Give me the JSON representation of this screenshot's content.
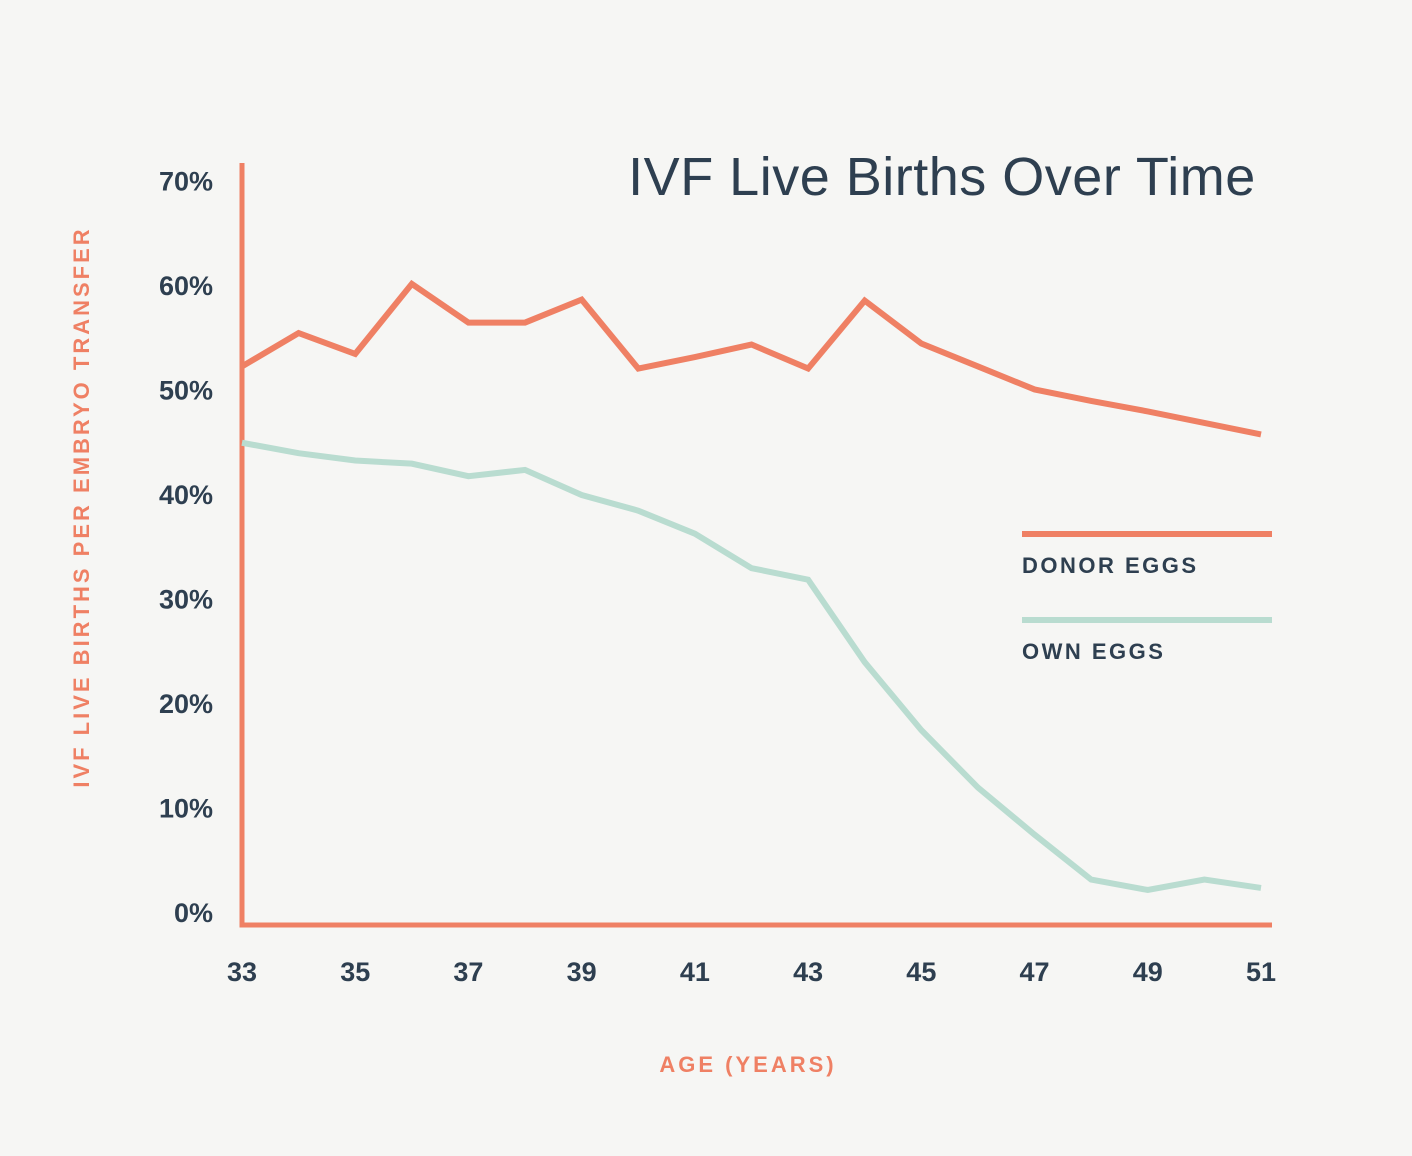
{
  "title": "IVF Live Births Over Time",
  "x_axis_label": "AGE (YEARS)",
  "y_axis_label": "IVF LIVE BIRTHS PER EMBRYO TRANSFER",
  "colors": {
    "background": "#f6f6f4",
    "axis_coral": "#ef8064",
    "donor_eggs_line": "#ef8064",
    "own_eggs_line": "#b9dcd0",
    "text_dark": "#2e3f50",
    "label_coral": "#ef8064"
  },
  "legend": [
    {
      "label": "DONOR EGGS",
      "color": "#ef8064",
      "series": "donor_eggs"
    },
    {
      "label": "OWN EGGS",
      "color": "#b9dcd0",
      "series": "own_eggs"
    }
  ],
  "chart_data": {
    "type": "line",
    "title": "IVF Live Births Over Time",
    "xlabel": "AGE (YEARS)",
    "ylabel": "IVF LIVE BIRTHS PER EMBRYO TRANSFER",
    "x": [
      33,
      34,
      35,
      36,
      37,
      38,
      39,
      40,
      41,
      42,
      43,
      44,
      45,
      46,
      47,
      48,
      49,
      50,
      51
    ],
    "series": [
      {
        "name": "DONOR EGGS",
        "color": "#ef8064",
        "values": [
          52.3,
          55.5,
          53.5,
          60.2,
          56.5,
          56.5,
          58.7,
          52.1,
          53.2,
          54.4,
          52.1,
          58.6,
          54.5,
          52.3,
          50.1,
          49.0,
          48.0,
          46.9,
          45.8
        ]
      },
      {
        "name": "OWN EGGS",
        "color": "#b9dcd0",
        "values": [
          45.0,
          44.0,
          43.3,
          43.0,
          41.8,
          42.4,
          40.0,
          38.5,
          36.3,
          33.0,
          31.9,
          24.0,
          17.5,
          12.0,
          7.5,
          3.2,
          2.2,
          3.2,
          2.4
        ]
      }
    ],
    "xlim": [
      33,
      51
    ],
    "ylim": [
      0,
      70
    ],
    "x_ticks": [
      33,
      35,
      37,
      39,
      41,
      43,
      45,
      47,
      49,
      51
    ],
    "y_ticks": [
      0,
      10,
      20,
      30,
      40,
      50,
      60,
      70
    ],
    "y_tick_suffix": "%",
    "grid": false,
    "legend_position": "right"
  }
}
